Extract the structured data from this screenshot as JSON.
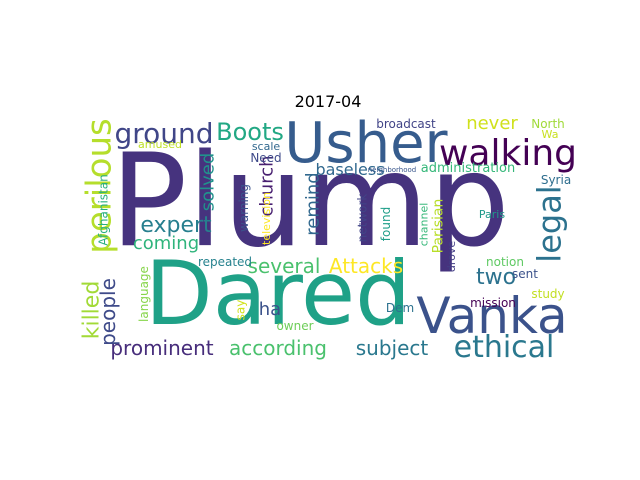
{
  "title": "2017-04",
  "words": [
    {
      "text": "Plump",
      "color": "#46337e",
      "rotated": false
    },
    {
      "text": "Dared",
      "color": "#1fa187",
      "rotated": false
    },
    {
      "text": "Usher",
      "color": "#365c8d",
      "rotated": false
    },
    {
      "text": "Vanka",
      "color": "#3b528b",
      "rotated": false
    },
    {
      "text": "walking",
      "color": "#440154",
      "rotated": false
    },
    {
      "text": "ethical",
      "color": "#2a788e",
      "rotated": false
    },
    {
      "text": "perilous",
      "color": "#b5de2b",
      "rotated": true
    },
    {
      "text": "ground",
      "color": "#404688",
      "rotated": false
    },
    {
      "text": "legal",
      "color": "#2c728e",
      "rotated": true
    },
    {
      "text": "Boots",
      "color": "#22a884",
      "rotated": false
    },
    {
      "text": "expert",
      "color": "#277f8e",
      "rotated": false
    },
    {
      "text": "several",
      "color": "#4ac16d",
      "rotated": false
    },
    {
      "text": "Attacks",
      "color": "#fde725",
      "rotated": false
    },
    {
      "text": "according",
      "color": "#4ac16d",
      "rotated": false
    },
    {
      "text": "prominent",
      "color": "#472d7b",
      "rotated": false
    },
    {
      "text": "subject",
      "color": "#2a788e",
      "rotated": false
    },
    {
      "text": "killed",
      "color": "#a2da37",
      "rotated": true
    },
    {
      "text": "people",
      "color": "#3e4a89",
      "rotated": true
    },
    {
      "text": "coming",
      "color": "#2fb47c",
      "rotated": false
    },
    {
      "text": "solved",
      "color": "#21918c",
      "rotated": true
    },
    {
      "text": "church",
      "color": "#481f70",
      "rotated": true
    },
    {
      "text": "remind",
      "color": "#31688e",
      "rotated": true
    },
    {
      "text": "two",
      "color": "#2c728e",
      "rotated": false
    },
    {
      "text": "ha",
      "color": "#3b528b",
      "rotated": false
    },
    {
      "text": "never",
      "color": "#d0e11c",
      "rotated": false
    },
    {
      "text": "baseless",
      "color": "#31688e",
      "rotated": false
    },
    {
      "text": "administration",
      "color": "#35b779",
      "rotated": false
    },
    {
      "text": "broadcast",
      "color": "#414487",
      "rotated": false
    },
    {
      "text": "North",
      "color": "#a0da39",
      "rotated": false
    },
    {
      "text": "Wa",
      "color": "#c8e020",
      "rotated": false
    },
    {
      "text": "Syria",
      "color": "#2e6e8e",
      "rotated": false
    },
    {
      "text": "notion",
      "color": "#5ec962",
      "rotated": false
    },
    {
      "text": "sent",
      "color": "#3b528b",
      "rotated": false
    },
    {
      "text": "study",
      "color": "#c2df23",
      "rotated": false
    },
    {
      "text": "mission",
      "color": "#440154",
      "rotated": false
    },
    {
      "text": "Dem",
      "color": "#2c728e",
      "rotated": false
    },
    {
      "text": "owner",
      "color": "#6ece58",
      "rotated": false
    },
    {
      "text": "say",
      "color": "#d2e21b",
      "rotated": true
    },
    {
      "text": "repeated",
      "color": "#26828e",
      "rotated": false
    },
    {
      "text": "language",
      "color": "#86d549",
      "rotated": true
    },
    {
      "text": "Afghanistan",
      "color": "#29af7f",
      "rotated": true
    },
    {
      "text": "amused",
      "color": "#bddf26",
      "rotated": false
    },
    {
      "text": "scale",
      "color": "#31688e",
      "rotated": false
    },
    {
      "text": "Need",
      "color": "#3e4989",
      "rotated": false
    },
    {
      "text": "warning",
      "color": "#3b528b",
      "rotated": true
    },
    {
      "text": "television",
      "color": "#fde725",
      "rotated": true
    },
    {
      "text": "network",
      "color": "#414487",
      "rotated": true
    },
    {
      "text": "found",
      "color": "#1f9e89",
      "rotated": true
    },
    {
      "text": "channel",
      "color": "#35b779",
      "rotated": true
    },
    {
      "text": "Parisian",
      "color": "#b8de29",
      "rotated": true
    },
    {
      "text": "drove",
      "color": "#433e85",
      "rotated": true
    },
    {
      "text": "neighborhood",
      "color": "#39568c",
      "rotated": false
    },
    {
      "text": "Paris",
      "color": "#1f9a8a",
      "rotated": false
    }
  ]
}
